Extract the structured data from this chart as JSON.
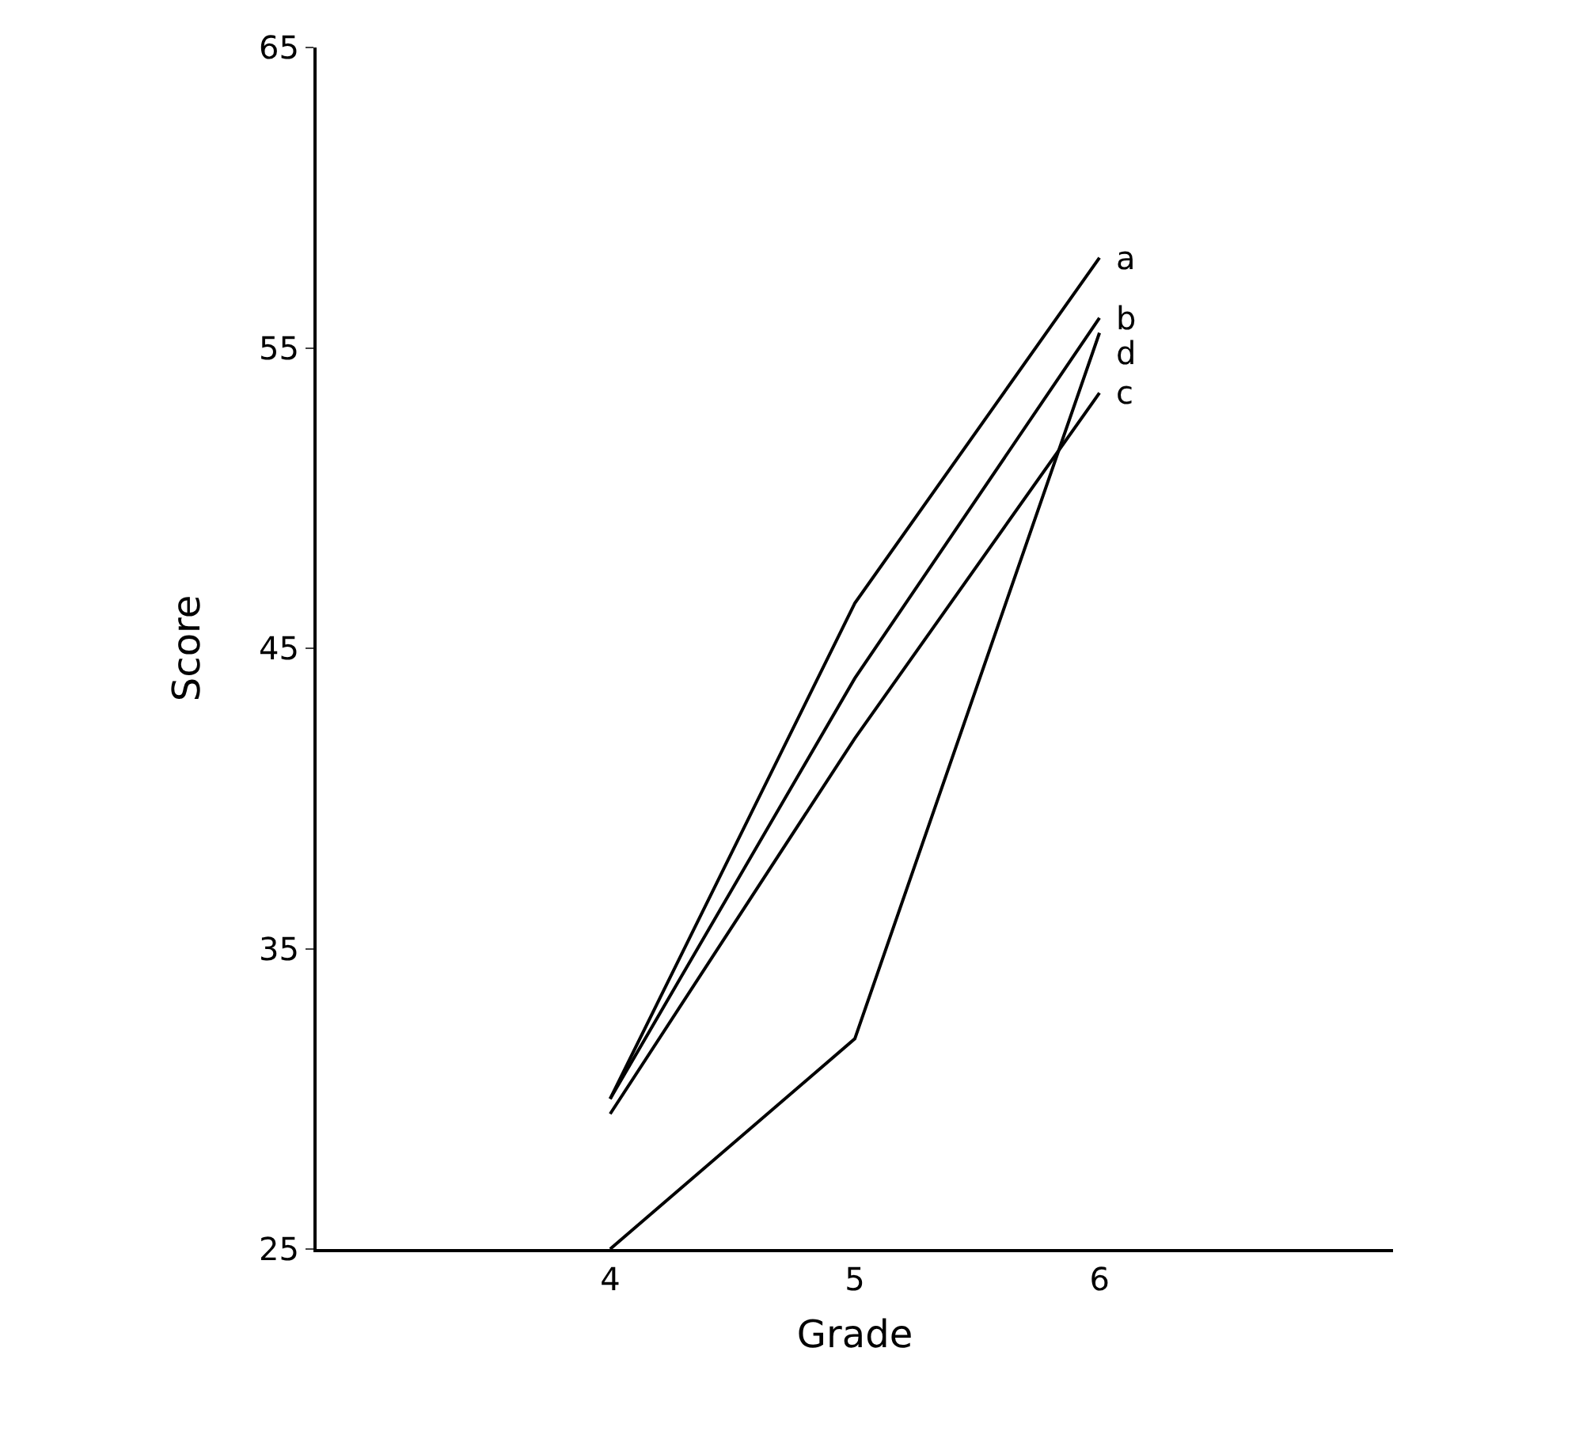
{
  "chart_data": {
    "type": "line",
    "xlabel": "Grade",
    "ylabel": "Score",
    "categories": [
      "4",
      "5",
      "6"
    ],
    "series": [
      {
        "name": "a",
        "color": "#000000",
        "values": [
          30,
          46.5,
          58
        ]
      },
      {
        "name": "b",
        "color": "#000000",
        "values": [
          30,
          44,
          56
        ]
      },
      {
        "name": "c",
        "color": "#000000",
        "values": [
          29.5,
          42,
          53.5
        ]
      },
      {
        "name": "d",
        "color": "#000000",
        "values": [
          25,
          32,
          55.5
        ]
      }
    ],
    "ylim": [
      25,
      65
    ],
    "yticks": [
      25,
      35,
      45,
      55,
      65
    ],
    "grid": false,
    "legend": false,
    "marker": "none",
    "line_style": "solid"
  }
}
